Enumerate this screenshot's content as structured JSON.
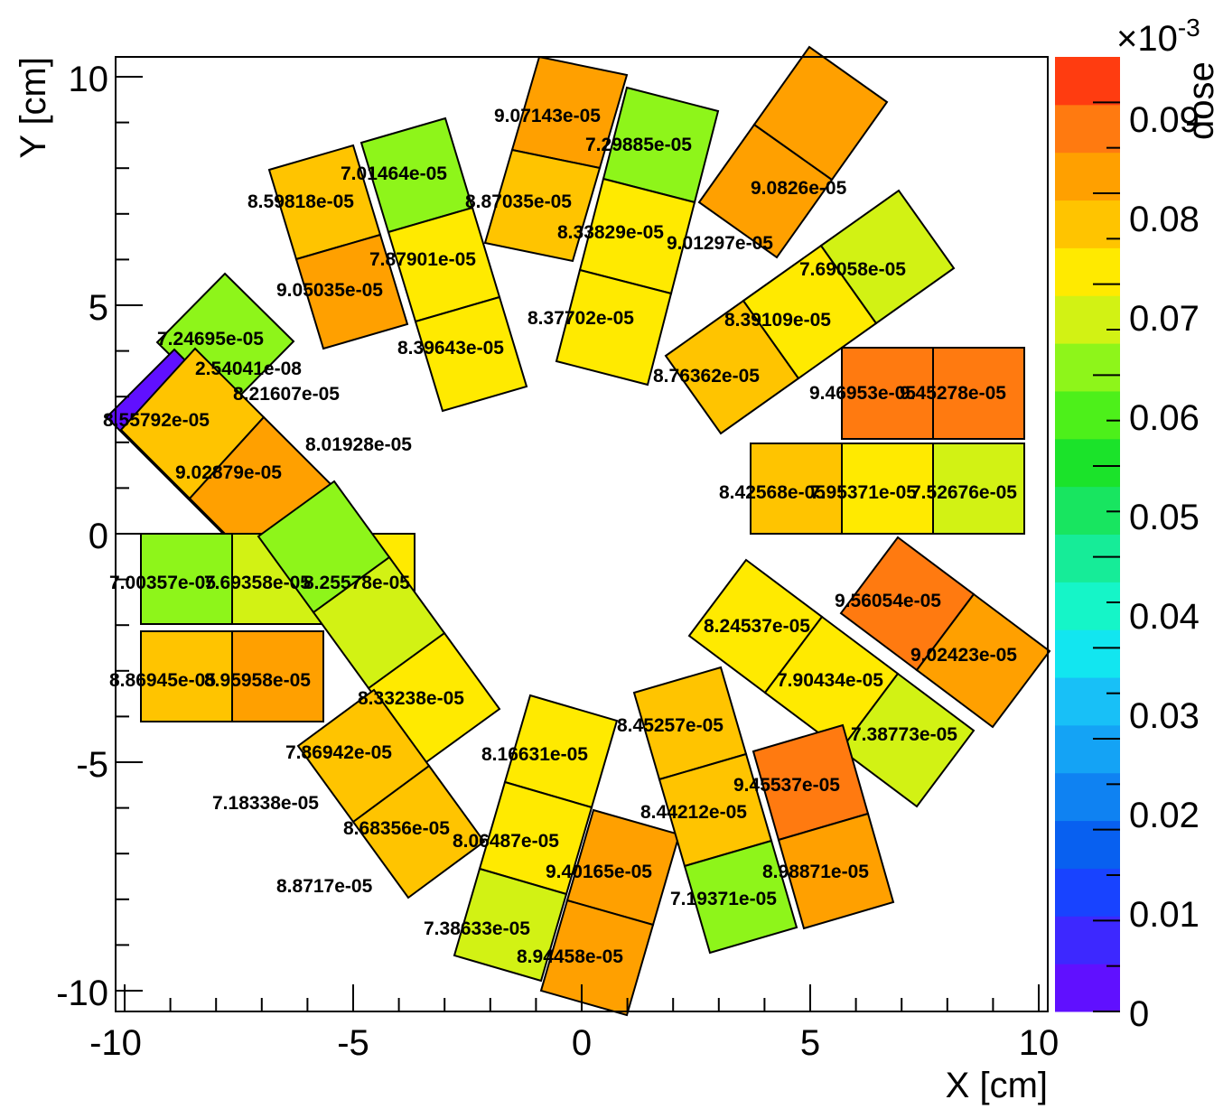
{
  "chart_data": {
    "type": "heatmap",
    "xlabel": "X [cm]",
    "ylabel": "Y [cm]",
    "xlim": [
      -10,
      10
    ],
    "ylim": [
      -10,
      10
    ],
    "x_ticks": [
      "-10",
      "-5",
      "0",
      "5",
      "10"
    ],
    "y_ticks": [
      "10",
      "5",
      "0",
      "-5",
      "-10"
    ],
    "colorbar": {
      "label": "dose",
      "exponent_label": "×10",
      "exponent": "-3",
      "range": [
        0,
        0.105
      ],
      "ticks": [
        "0",
        "0.01",
        "0.02",
        "0.03",
        "0.04",
        "0.05",
        "0.06",
        "0.07",
        "0.08",
        "0.09"
      ]
    },
    "cells": [
      {
        "label": "9.07143e-05",
        "value": 9.07143e-05
      },
      {
        "label": "7.29885e-05",
        "value": 7.29885e-05
      },
      {
        "label": "8.87035e-05",
        "value": 8.87035e-05
      },
      {
        "label": "8.33829e-05",
        "value": 8.33829e-05
      },
      {
        "label": "8.37702e-05",
        "value": 8.37702e-05
      },
      {
        "label": "7.01464e-05",
        "value": 7.01464e-05
      },
      {
        "label": "8.59818e-05",
        "value": 8.59818e-05
      },
      {
        "label": "7.87901e-05",
        "value": 7.87901e-05
      },
      {
        "label": "9.05035e-05",
        "value": 9.05035e-05
      },
      {
        "label": "8.39643e-05",
        "value": 8.39643e-05
      },
      {
        "label": "9.0826e-05",
        "value": 9.0826e-05
      },
      {
        "label": "9.01297e-05",
        "value": 9.01297e-05
      },
      {
        "label": "7.69058e-05",
        "value": 7.69058e-05
      },
      {
        "label": "8.39109e-05",
        "value": 8.39109e-05
      },
      {
        "label": "8.76362e-05",
        "value": 8.76362e-05
      },
      {
        "label": "7.24695e-05",
        "value": 7.24695e-05
      },
      {
        "label": "2.54041e-08",
        "value": 2.54041e-08
      },
      {
        "label": "8.21607e-05",
        "value": 8.21607e-05
      },
      {
        "label": "8.55792e-05",
        "value": 8.55792e-05
      },
      {
        "label": "8.01928e-05",
        "value": 8.01928e-05
      },
      {
        "label": "9.02879e-05",
        "value": 9.02879e-05
      },
      {
        "label": "9.46953e-05",
        "value": 9.46953e-05
      },
      {
        "label": "9.45278e-05",
        "value": 9.45278e-05
      },
      {
        "label": "8.42568e-05",
        "value": 8.42568e-05
      },
      {
        "label": "7.95371e-05",
        "value": 7.95371e-05
      },
      {
        "label": "7.52676e-05",
        "value": 7.52676e-05
      },
      {
        "label": "7.00357e-05",
        "value": 7.00357e-05
      },
      {
        "label": "7.69358e-05",
        "value": 7.69358e-05
      },
      {
        "label": "8.25578e-05",
        "value": 8.25578e-05
      },
      {
        "label": "8.86945e-05",
        "value": 8.86945e-05
      },
      {
        "label": "8.95958e-05",
        "value": 8.95958e-05
      },
      {
        "label": "9.56054e-05",
        "value": 9.56054e-05
      },
      {
        "label": "8.24537e-05",
        "value": 8.24537e-05
      },
      {
        "label": "9.02423e-05",
        "value": 9.02423e-05
      },
      {
        "label": "7.90434e-05",
        "value": 7.90434e-05
      },
      {
        "label": "7.38773e-05",
        "value": 7.38773e-05
      },
      {
        "label": "8.33238e-05",
        "value": 8.33238e-05
      },
      {
        "label": "7.86942e-05",
        "value": 7.86942e-05
      },
      {
        "label": "7.18338e-05",
        "value": 7.18338e-05
      },
      {
        "label": "8.68356e-05",
        "value": 8.68356e-05
      },
      {
        "label": "8.8717e-05",
        "value": 8.8717e-05
      },
      {
        "label": "8.16631e-05",
        "value": 8.16631e-05
      },
      {
        "label": "8.06487e-05",
        "value": 8.06487e-05
      },
      {
        "label": "9.40165e-05",
        "value": 9.40165e-05
      },
      {
        "label": "7.38633e-05",
        "value": 7.38633e-05
      },
      {
        "label": "8.94458e-05",
        "value": 8.94458e-05
      },
      {
        "label": "8.45257e-05",
        "value": 8.45257e-05
      },
      {
        "label": "9.45537e-05",
        "value": 9.45537e-05
      },
      {
        "label": "8.44212e-05",
        "value": 8.44212e-05
      },
      {
        "label": "8.98871e-05",
        "value": 8.98871e-05
      },
      {
        "label": "7.19371e-05",
        "value": 7.19371e-05
      }
    ]
  }
}
